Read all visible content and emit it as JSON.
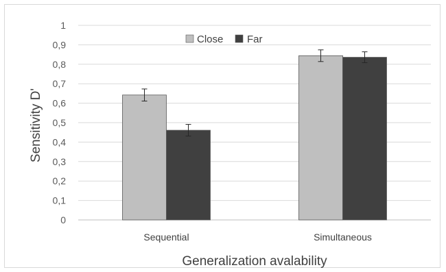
{
  "chart_data": {
    "type": "bar",
    "categories": [
      "Sequential",
      "Simultaneous"
    ],
    "series": [
      {
        "name": "Close",
        "values": [
          0.642,
          0.844
        ],
        "errors": [
          0.031,
          0.03
        ],
        "color": "#bfbfbf"
      },
      {
        "name": "Far",
        "values": [
          0.461,
          0.836
        ],
        "errors": [
          0.03,
          0.028
        ],
        "color": "#404040"
      }
    ],
    "xlabel": "Generalization avalability",
    "ylabel": "Sensitivity D'",
    "ylim": [
      0,
      1
    ],
    "yticks": [
      "0",
      "0,1",
      "0,2",
      "0,3",
      "0,4",
      "0,5",
      "0,6",
      "0,7",
      "0,8",
      "0,9",
      "1"
    ],
    "grid": true,
    "legend": "top-center"
  }
}
